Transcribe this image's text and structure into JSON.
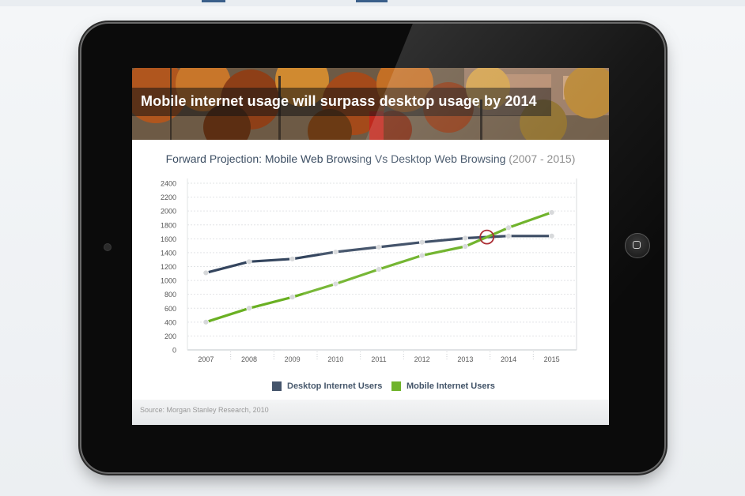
{
  "banner": {
    "title": "Mobile internet usage will surpass desktop usage by 2014"
  },
  "chart_data": {
    "type": "line",
    "title": "Forward Projection: Mobile Web Browsing Vs Desktop Web Browsing",
    "title_years": "(2007 - 2015)",
    "categories": [
      "2007",
      "2008",
      "2009",
      "2010",
      "2011",
      "2012",
      "2013",
      "2014",
      "2015"
    ],
    "y_ticks": [
      0,
      200,
      400,
      600,
      800,
      1000,
      1200,
      1400,
      1600,
      1800,
      2000,
      2200,
      2400
    ],
    "ylim": [
      0,
      2400
    ],
    "grid": true,
    "legend_position": "bottom",
    "series": [
      {
        "name": "Desktop Internet Users",
        "color": "#34455e",
        "values": [
          1110,
          1270,
          1310,
          1410,
          1480,
          1550,
          1610,
          1640,
          1640
        ]
      },
      {
        "name": "Mobile Internet Users",
        "color": "#6ab023",
        "values": [
          400,
          600,
          760,
          950,
          1160,
          1360,
          1490,
          1760,
          1980
        ]
      }
    ],
    "annotation": {
      "type": "crossover-circle",
      "color": "#a8232a"
    }
  },
  "footer": {
    "source": "Source: Morgan Stanley Research, 2010"
  }
}
